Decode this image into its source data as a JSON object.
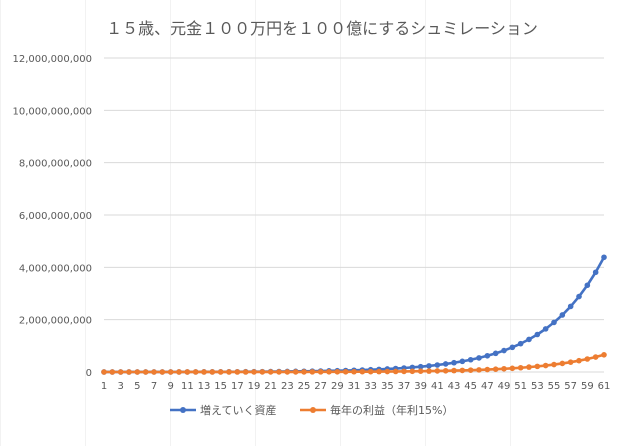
{
  "chart_data": {
    "type": "line",
    "title": "１５歳、元金１００万円を１００億にするシュミレーション",
    "xlabel": "",
    "ylabel": "",
    "categories": [
      1,
      3,
      5,
      7,
      9,
      11,
      13,
      15,
      17,
      19,
      21,
      23,
      25,
      27,
      29,
      31,
      33,
      35,
      37,
      39,
      41,
      43,
      45,
      47,
      49,
      51,
      53,
      55,
      57,
      59,
      61
    ],
    "x": [
      1,
      2,
      3,
      4,
      5,
      6,
      7,
      8,
      9,
      10,
      11,
      12,
      13,
      14,
      15,
      16,
      17,
      18,
      19,
      20,
      21,
      22,
      23,
      24,
      25,
      26,
      27,
      28,
      29,
      30,
      31,
      32,
      33,
      34,
      35,
      36,
      37,
      38,
      39,
      40,
      41,
      42,
      43,
      44,
      45,
      46,
      47,
      48,
      49,
      50,
      51,
      52,
      53,
      54,
      55,
      56,
      57,
      58,
      59,
      60,
      61
    ],
    "ylim": [
      0,
      12000000000
    ],
    "yticks": [
      "0",
      "2,000,000,000",
      "4,000,000,000",
      "6,000,000,000",
      "8,000,000,000",
      "10,000,000,000",
      "12,000,000,000"
    ],
    "ytick_values": [
      0,
      2000000000,
      4000000000,
      6000000000,
      8000000000,
      10000000000,
      12000000000
    ],
    "grid": true,
    "legend_position": "bottom",
    "series": [
      {
        "name": "増えていく資産",
        "color": "#4472C4",
        "values": [
          1000000,
          1150000,
          1322500,
          1520875,
          1749006,
          2011357,
          2313061,
          2660020,
          3059023,
          3517876,
          4045558,
          4652391,
          5350250,
          6152788,
          7075706,
          8137062,
          9357621,
          10761264,
          12375454,
          14231772,
          16366537,
          18821518,
          21644746,
          24891458,
          28625176,
          32918953,
          37856796,
          43535315,
          50065612,
          57575454,
          66211772,
          76143538,
          87565069,
          100699829,
          115804803,
          133175523,
          153151852,
          176124630,
          202543324,
          232924823,
          267863546,
          308043078,
          354249540,
          407386971,
          468495017,
          538769269,
          619584659,
          712522358,
          819400712,
          942310819,
          1083657442,
          1246206058,
          1433136966,
          1648107512,
          1895323638,
          2179622184,
          2506565512,
          2882550338,
          3314932889,
          3812172822,
          4384000000
        ]
      },
      {
        "name": "毎年の利益（年利15%）",
        "color": "#ED7D31",
        "values": [
          150000,
          172500,
          198375,
          228131,
          262351,
          301704,
          346959,
          399003,
          458853,
          527681,
          606834,
          697859,
          802537,
          922918,
          1061356,
          1220559,
          1403643,
          1614190,
          1856318,
          2134766,
          2454981,
          2823228,
          3246712,
          3733719,
          4293776,
          4937843,
          5678519,
          6530297,
          7509842,
          8636318,
          9931766,
          11421531,
          13134761,
          15104975,
          17370720,
          19976328,
          22972777,
          26418694,
          30381499,
          34938723,
          40179532,
          46206462,
          53137431,
          61108046,
          70274253,
          80815390,
          92937699,
          106878354,
          122910107,
          141346623,
          162548616,
          186930908,
          214970545,
          247216127,
          284298548,
          326943331,
          375984830,
          432382554,
          497240937,
          571827078,
          657600000
        ]
      }
    ]
  }
}
